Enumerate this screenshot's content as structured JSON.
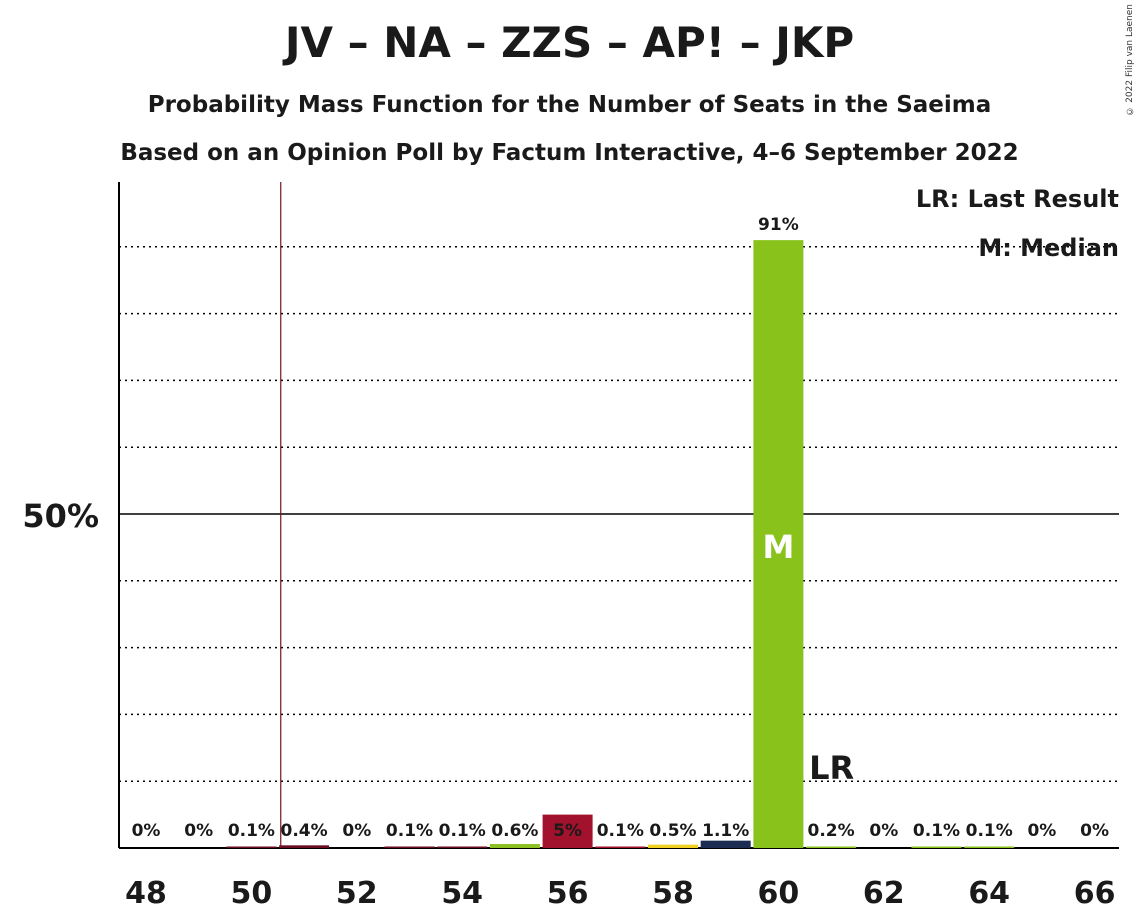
{
  "chart_data": {
    "type": "bar",
    "title": "JV – NA – ZZS – AP! – JKP",
    "subtitle_1": "Probability Mass Function for the Number of Seats in the Saeima",
    "subtitle_2": "Based on an Opinion Poll by Factum Interactive, 4–6 September 2022",
    "copyright": "© 2022 Filip van Laenen",
    "legend": {
      "lr": "LR: Last Result",
      "m": "M: Median"
    },
    "ytick_label": "50%",
    "ytick_value": 50,
    "ylim": [
      0,
      100
    ],
    "last_result_seat": 51,
    "median_seat": 60,
    "median_marker": "M",
    "last_result_marker": "LR",
    "x_tick_labels": [
      "48",
      "50",
      "52",
      "54",
      "56",
      "58",
      "60",
      "62",
      "64",
      "66"
    ],
    "categories": [
      48,
      49,
      50,
      51,
      52,
      53,
      54,
      55,
      56,
      57,
      58,
      59,
      60,
      61,
      62,
      63,
      64,
      65,
      66
    ],
    "values": [
      0,
      0,
      0.1,
      0.4,
      0,
      0.1,
      0.1,
      0.6,
      5,
      0.1,
      0.5,
      1.1,
      91,
      0.2,
      0,
      0.1,
      0.1,
      0,
      0
    ],
    "labels": [
      "0%",
      "0%",
      "0.1%",
      "0.4%",
      "0%",
      "0.1%",
      "0.1%",
      "0.6%",
      "5%",
      "0.1%",
      "0.5%",
      "1.1%",
      "91%",
      "0.2%",
      "0%",
      "0.1%",
      "0.1%",
      "0%",
      "0%"
    ],
    "colors": [
      "#6a0d21",
      "#6a0d21",
      "#6a0d21",
      "#6a0d21",
      "#6a0d21",
      "#6a0d21",
      "#6a0d21",
      "#8dc021",
      "#a3122c",
      "#a3122c",
      "#f0d020",
      "#1c2b52",
      "#8ac21c",
      "#8ac21c",
      "#8ac21c",
      "#8ac21c",
      "#8ac21c",
      "#8ac21c",
      "#8ac21c"
    ],
    "grid": true
  }
}
